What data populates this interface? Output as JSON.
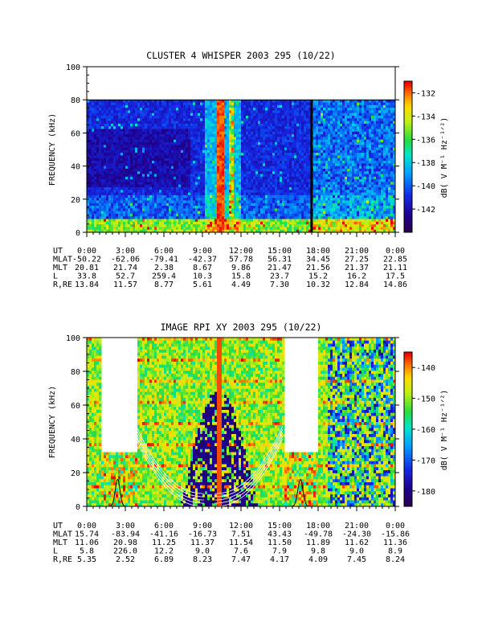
{
  "chart_data": [
    {
      "type": "heatmap",
      "title": "CLUSTER 4 WHISPER 2003 295 (10/22)",
      "ylabel": "FREQUENCY (kHz)",
      "ylim": [
        0,
        100
      ],
      "yticks": [
        "0",
        "20",
        "40",
        "60",
        "80",
        "100"
      ],
      "xticks": [
        "0:00",
        "3:00",
        "6:00",
        "9:00",
        "12:00",
        "15:00",
        "18:00",
        "21:00",
        "0:00"
      ],
      "colorbar": {
        "label": "dB( V M⁻¹ Hz⁻¹ᐟ²)",
        "ticks": [
          "-132",
          "-134",
          "-136",
          "-138",
          "-140",
          "-142"
        ],
        "range": [
          -144,
          -131
        ]
      },
      "ephemeris": [
        {
          "label": "UT",
          "values": [
            "0:00",
            "3:00",
            "6:00",
            "9:00",
            "12:00",
            "15:00",
            "18:00",
            "21:00",
            "0:00"
          ]
        },
        {
          "label": "MLAT",
          "values": [
            "-50.22",
            "-62.06",
            "-79.41",
            "-42.37",
            "57.78",
            "56.31",
            "34.45",
            "27.25",
            "22.85"
          ]
        },
        {
          "label": "MLT",
          "values": [
            "20.81",
            "21.74",
            "2.38",
            "8.67",
            "9.86",
            "21.47",
            "21.56",
            "21.37",
            "21.11"
          ]
        },
        {
          "label": "L",
          "values": [
            "33.8",
            "52.7",
            "259.4",
            "10.3",
            "15.8",
            "23.7",
            "15.2",
            "16.2",
            "17.5"
          ]
        },
        {
          "label": "R,RE",
          "values": [
            "13.84",
            "11.57",
            "8.77",
            "5.61",
            "4.49",
            "7.30",
            "10.32",
            "12.84",
            "14.86"
          ]
        }
      ]
    },
    {
      "type": "heatmap",
      "title": "IMAGE RPI XY 2003 295 (10/22)",
      "ylabel": "FREQUENCY (kHz)",
      "ylim": [
        0,
        100
      ],
      "yticks": [
        "0",
        "20",
        "40",
        "60",
        "80",
        "100"
      ],
      "xticks": [
        "0:00",
        "3:00",
        "6:00",
        "9:00",
        "12:00",
        "15:00",
        "18:00",
        "21:00",
        "0:00"
      ],
      "colorbar": {
        "label": "dB( V M⁻¹ Hz⁻¹ᐟ²)",
        "ticks": [
          "-140",
          "-150",
          "-160",
          "-170",
          "-180"
        ],
        "range": [
          -185,
          -135
        ]
      },
      "ephemeris": [
        {
          "label": "UT",
          "values": [
            "0:00",
            "3:00",
            "6:00",
            "9:00",
            "12:00",
            "15:00",
            "18:00",
            "21:00",
            "0:00"
          ]
        },
        {
          "label": "MLAT",
          "values": [
            "15.74",
            "-83.94",
            "-41.16",
            "-16.73",
            "7.51",
            "43.43",
            "-49.78",
            "-24.30",
            "-15.86"
          ]
        },
        {
          "label": "MLT",
          "values": [
            "11.06",
            "20.98",
            "11.25",
            "11.37",
            "11.54",
            "11.50",
            "11.89",
            "11.62",
            "11.36"
          ]
        },
        {
          "label": "L",
          "values": [
            "5.8",
            "226.0",
            "12.2",
            "9.0",
            "7.6",
            "7.9",
            "9.8",
            "9.0",
            "8.9"
          ]
        },
        {
          "label": "R,RE",
          "values": [
            "5.35",
            "2.52",
            "6.89",
            "8.23",
            "7.47",
            "4.17",
            "4.09",
            "7.45",
            "8.24"
          ]
        }
      ]
    }
  ],
  "colors": {
    "axis": "#000000",
    "background": "#ffffff"
  }
}
